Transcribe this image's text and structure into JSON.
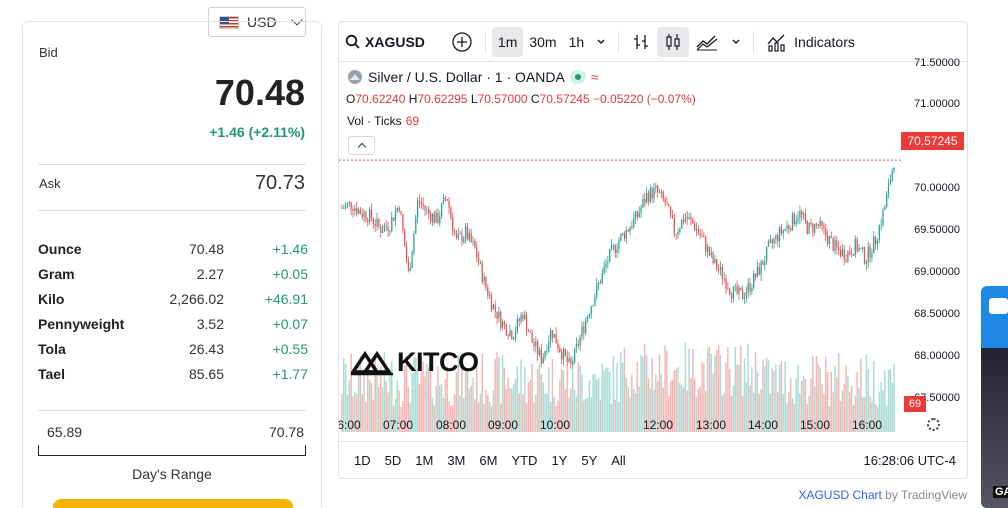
{
  "currency": {
    "selected": "USD"
  },
  "quote": {
    "bid_label": "Bid",
    "bid": "70.48",
    "change": "+1.46 (+2.11%)",
    "ask_label": "Ask",
    "ask": "70.73",
    "units": [
      {
        "name": "Ounce",
        "price": "70.48",
        "change": "+1.46"
      },
      {
        "name": "Gram",
        "price": "2.27",
        "change": "+0.05"
      },
      {
        "name": "Kilo",
        "price": "2,266.02",
        "change": "+46.91"
      },
      {
        "name": "Pennyweight",
        "price": "3.52",
        "change": "+0.07"
      },
      {
        "name": "Tola",
        "price": "26.43",
        "change": "+0.55"
      },
      {
        "name": "Tael",
        "price": "85.65",
        "change": "+1.77"
      }
    ],
    "day_low": "65.89",
    "day_high": "70.78",
    "range_label": "Day's Range"
  },
  "chart": {
    "symbol": "XAGUSD",
    "intervals": [
      "1m",
      "30m",
      "1h"
    ],
    "selected_interval": "1m",
    "indicators_label": "Indicators",
    "title": "Silver / U.S. Dollar · 1 · OANDA",
    "ohlc": {
      "o_label": "O",
      "o": "70.62240",
      "h_label": "H",
      "h": "70.62295",
      "l_label": "L",
      "l": "70.57000",
      "c_label": "C",
      "c": "70.57245",
      "chg": "−0.05220 (−0.07%)"
    },
    "vol_label": "Vol · Ticks",
    "vol_value": "69",
    "last_price": "70.57245",
    "last_volume": "69",
    "y_ticks": [
      "71.50000",
      "71.00000",
      "70.50000",
      "70.00000",
      "69.50000",
      "69.00000",
      "68.50000",
      "68.00000",
      "67.50000"
    ],
    "x_ticks": [
      "6:00",
      "07:00",
      "08:00",
      "09:00",
      "10:00",
      "12:00",
      "13:00",
      "14:00",
      "15:00",
      "16:00"
    ],
    "ranges": [
      "1D",
      "5D",
      "1M",
      "3M",
      "6M",
      "YTD",
      "1Y",
      "5Y",
      "All"
    ],
    "clock": "16:28:06 UTC-4",
    "watermark": "KITCO",
    "footer_link": "XAGUSD Chart",
    "footer_by": "by TradingView"
  },
  "colors": {
    "up": "#26a69a",
    "down": "#ef5350",
    "accent_green": "#1e9b6f",
    "price_tag": "#ef3a3a"
  },
  "chart_data": {
    "type": "line",
    "series": [
      {
        "values": [
          70.0,
          70.05,
          69.95,
          69.9,
          69.75,
          69.8,
          70.05,
          69.2,
          70.1,
          69.95,
          69.85,
          70.15,
          69.6,
          69.7,
          69.5,
          69.1,
          68.8,
          68.6,
          68.5,
          68.75,
          68.4,
          68.2,
          68.55,
          68.3,
          68.1,
          68.45,
          68.8,
          69.1,
          69.4,
          69.6,
          69.75,
          69.9,
          70.15,
          70.2,
          70.05,
          69.7,
          69.9,
          69.8,
          69.6,
          69.35,
          69.2,
          69.0,
          68.95,
          69.1,
          69.3,
          69.55,
          69.7,
          69.8,
          69.95,
          69.75,
          69.8,
          69.65,
          69.5,
          69.45,
          69.55,
          69.4,
          69.6,
          70.0,
          70.57
        ]
      }
    ],
    "ylim": [
      67.5,
      71.5
    ]
  }
}
